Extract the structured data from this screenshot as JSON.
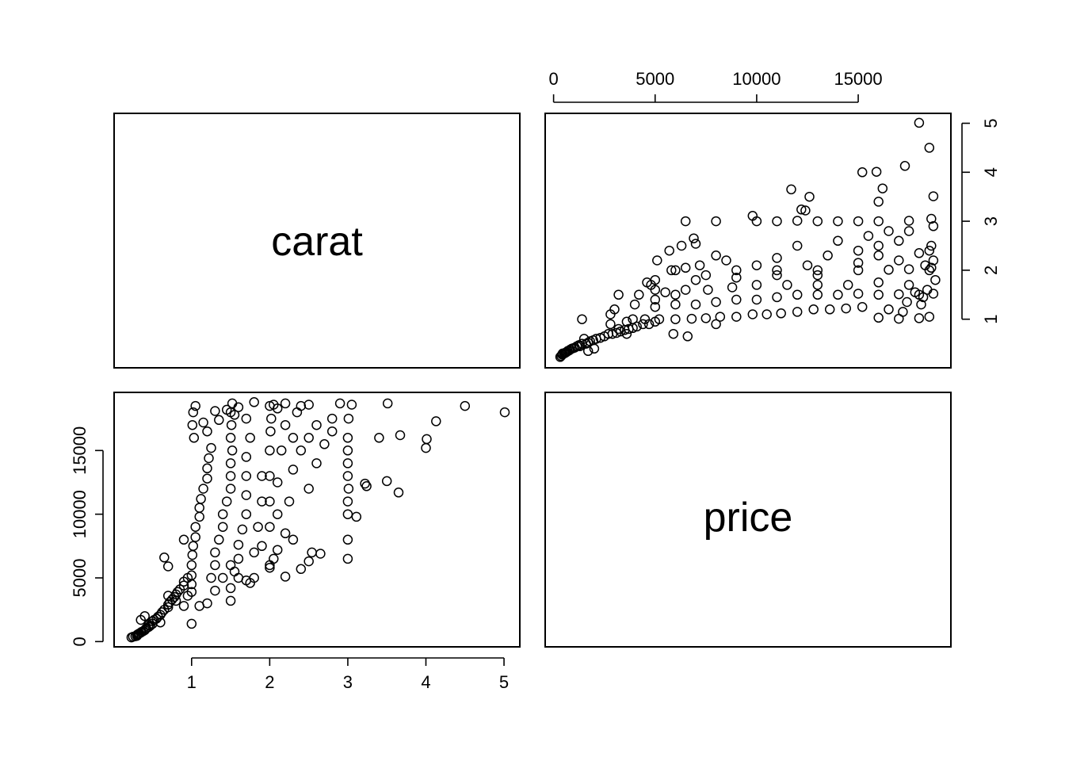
{
  "chart_data": {
    "type": "scatter",
    "layout": "pairs",
    "variables": [
      "carat",
      "price"
    ],
    "axes": {
      "carat": {
        "range": [
          0.2,
          5.01
        ],
        "ticks": [
          1,
          2,
          3,
          4,
          5
        ],
        "tick_labels": [
          "1",
          "2",
          "3",
          "4",
          "5"
        ]
      },
      "price": {
        "range": [
          326,
          18823
        ],
        "ticks": [
          0,
          5000,
          10000,
          15000
        ],
        "tick_labels": [
          "0",
          "5000",
          "10000",
          "15000"
        ]
      }
    },
    "panels": [
      {
        "row": 1,
        "col": 1,
        "kind": "label",
        "text": "carat"
      },
      {
        "row": 1,
        "col": 2,
        "kind": "scatter",
        "x": "price",
        "y": "carat",
        "x_axis_side": "top",
        "y_axis_side": "right"
      },
      {
        "row": 2,
        "col": 1,
        "kind": "scatter",
        "x": "carat",
        "y": "price",
        "x_axis_side": "bottom",
        "y_axis_side": "left"
      },
      {
        "row": 2,
        "col": 2,
        "kind": "label",
        "text": "price"
      }
    ],
    "marker": "open-circle",
    "points": [
      [
        0.23,
        326
      ],
      [
        0.25,
        380
      ],
      [
        0.28,
        420
      ],
      [
        0.3,
        450
      ],
      [
        0.3,
        520
      ],
      [
        0.31,
        560
      ],
      [
        0.32,
        600
      ],
      [
        0.33,
        640
      ],
      [
        0.35,
        700
      ],
      [
        0.36,
        760
      ],
      [
        0.38,
        820
      ],
      [
        0.4,
        900
      ],
      [
        0.41,
        980
      ],
      [
        0.42,
        1050
      ],
      [
        0.45,
        1150
      ],
      [
        0.47,
        1250
      ],
      [
        0.5,
        1400
      ],
      [
        0.5,
        1600
      ],
      [
        0.52,
        1700
      ],
      [
        0.55,
        1800
      ],
      [
        0.57,
        1950
      ],
      [
        0.6,
        2100
      ],
      [
        0.62,
        2300
      ],
      [
        0.65,
        2500
      ],
      [
        0.7,
        2700
      ],
      [
        0.7,
        2900
      ],
      [
        0.72,
        3100
      ],
      [
        0.75,
        3300
      ],
      [
        0.78,
        3500
      ],
      [
        0.8,
        3700
      ],
      [
        0.82,
        3900
      ],
      [
        0.85,
        4100
      ],
      [
        0.9,
        4400
      ],
      [
        0.9,
        4700
      ],
      [
        0.95,
        5000
      ],
      [
        1.0,
        4500
      ],
      [
        1.0,
        5200
      ],
      [
        1.0,
        6000
      ],
      [
        1.01,
        6800
      ],
      [
        1.02,
        7500
      ],
      [
        1.05,
        8200
      ],
      [
        1.05,
        9000
      ],
      [
        1.1,
        9800
      ],
      [
        1.1,
        10500
      ],
      [
        1.12,
        11200
      ],
      [
        1.15,
        12000
      ],
      [
        1.2,
        12800
      ],
      [
        1.2,
        13600
      ],
      [
        1.22,
        14400
      ],
      [
        1.25,
        15200
      ],
      [
        1.03,
        16000
      ],
      [
        1.01,
        17000
      ],
      [
        1.02,
        18000
      ],
      [
        1.05,
        18500
      ],
      [
        1.25,
        5000
      ],
      [
        1.3,
        6000
      ],
      [
        1.3,
        7000
      ],
      [
        1.35,
        8000
      ],
      [
        1.4,
        9000
      ],
      [
        1.4,
        10000
      ],
      [
        1.45,
        11000
      ],
      [
        1.5,
        12000
      ],
      [
        1.5,
        13000
      ],
      [
        1.5,
        14000
      ],
      [
        1.52,
        15000
      ],
      [
        1.5,
        16000
      ],
      [
        1.51,
        17000
      ],
      [
        1.5,
        18000
      ],
      [
        1.52,
        18700
      ],
      [
        1.5,
        3200
      ],
      [
        1.5,
        4200
      ],
      [
        1.55,
        5500
      ],
      [
        1.6,
        6500
      ],
      [
        1.6,
        7600
      ],
      [
        1.65,
        8800
      ],
      [
        1.7,
        10000
      ],
      [
        1.7,
        11500
      ],
      [
        1.7,
        13000
      ],
      [
        1.7,
        14500
      ],
      [
        1.75,
        16000
      ],
      [
        1.8,
        5000
      ],
      [
        1.8,
        7000
      ],
      [
        1.85,
        9000
      ],
      [
        1.9,
        11000
      ],
      [
        1.9,
        13000
      ],
      [
        2.0,
        9000
      ],
      [
        2.0,
        11000
      ],
      [
        2.0,
        13000
      ],
      [
        2.0,
        15000
      ],
      [
        2.01,
        16500
      ],
      [
        2.02,
        17500
      ],
      [
        2.05,
        18600
      ],
      [
        2.1,
        10000
      ],
      [
        2.1,
        12500
      ],
      [
        2.15,
        15000
      ],
      [
        2.2,
        17000
      ],
      [
        2.2,
        18700
      ],
      [
        2.25,
        11000
      ],
      [
        2.3,
        13500
      ],
      [
        2.3,
        16000
      ],
      [
        2.35,
        18000
      ],
      [
        2.4,
        15000
      ],
      [
        2.4,
        18500
      ],
      [
        2.5,
        12000
      ],
      [
        2.5,
        16000
      ],
      [
        2.5,
        18600
      ],
      [
        2.6,
        14000
      ],
      [
        2.6,
        17000
      ],
      [
        2.7,
        15500
      ],
      [
        2.8,
        17500
      ],
      [
        2.2,
        5100
      ],
      [
        2.4,
        5700
      ],
      [
        2.5,
        6300
      ],
      [
        2.54,
        7000
      ],
      [
        2.65,
        6900
      ],
      [
        2.3,
        8000
      ],
      [
        2.05,
        6500
      ],
      [
        1.75,
        4600
      ],
      [
        2.8,
        16500
      ],
      [
        2.9,
        18700
      ],
      [
        3.0,
        6500
      ],
      [
        3.0,
        8000
      ],
      [
        3.0,
        10000
      ],
      [
        3.0,
        11000
      ],
      [
        3.01,
        12000
      ],
      [
        3.0,
        13000
      ],
      [
        3.0,
        15000
      ],
      [
        3.0,
        16000
      ],
      [
        3.01,
        17500
      ],
      [
        3.05,
        18600
      ],
      [
        3.0,
        14000
      ],
      [
        3.11,
        9800
      ],
      [
        3.22,
        12400
      ],
      [
        3.24,
        12200
      ],
      [
        3.4,
        16000
      ],
      [
        3.5,
        12600
      ],
      [
        3.51,
        18700
      ],
      [
        3.65,
        11700
      ],
      [
        3.67,
        16200
      ],
      [
        4.0,
        15200
      ],
      [
        4.01,
        15900
      ],
      [
        4.13,
        17300
      ],
      [
        4.5,
        18500
      ],
      [
        5.01,
        18000
      ],
      [
        0.9,
        2800
      ],
      [
        0.95,
        3600
      ],
      [
        1.0,
        3900
      ],
      [
        0.8,
        3200
      ],
      [
        0.7,
        3600
      ],
      [
        0.6,
        1500
      ],
      [
        0.65,
        6600
      ],
      [
        0.7,
        5900
      ],
      [
        0.9,
        8000
      ],
      [
        0.4,
        2000
      ],
      [
        0.35,
        1700
      ],
      [
        0.45,
        1300
      ],
      [
        1.2,
        3000
      ],
      [
        1.3,
        4000
      ],
      [
        1.4,
        5000
      ],
      [
        1.6,
        5000
      ],
      [
        1.0,
        1400
      ],
      [
        1.1,
        2800
      ],
      [
        1.5,
        6000
      ],
      [
        1.7,
        4800
      ],
      [
        1.9,
        7500
      ],
      [
        2.0,
        6000
      ],
      [
        2.0,
        5800
      ],
      [
        2.1,
        7200
      ],
      [
        2.2,
        8500
      ],
      [
        1.55,
        17800
      ],
      [
        1.6,
        18400
      ],
      [
        1.45,
        18200
      ],
      [
        1.7,
        17500
      ],
      [
        1.8,
        18800
      ],
      [
        2.0,
        18500
      ],
      [
        2.1,
        18300
      ],
      [
        1.2,
        16500
      ],
      [
        1.15,
        17200
      ],
      [
        1.3,
        18100
      ],
      [
        1.35,
        17400
      ]
    ]
  }
}
